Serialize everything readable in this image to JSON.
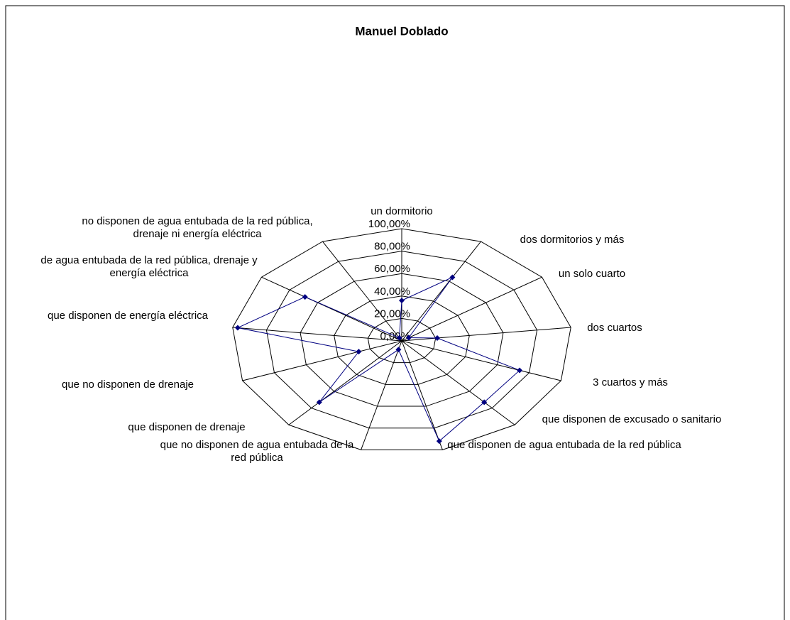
{
  "chart_data": {
    "type": "radar",
    "title": "Manuel Doblado",
    "categories": [
      "un dormitorio",
      "dos dormitorios y más",
      "un solo cuarto",
      "dos cuartos",
      "3 cuartos y más",
      "que disponen de excusado o sanitario",
      "que disponen de agua entubada de la red pública",
      "que no disponen de agua entubada de la red pública",
      "que disponen de drenaje",
      "que no disponen de drenaje",
      "que disponen de energía eléctrica",
      "de agua entubada de la red pública, drenaje y energía eléctrica",
      "no disponen de agua entubada de la red pública, drenaje ni energía eléctrica"
    ],
    "series": [
      {
        "color": "#000080",
        "values": [
          36,
          64,
          5,
          21,
          74,
          73,
          92,
          8,
          73,
          27,
          97,
          69,
          3
        ]
      }
    ],
    "ylim": [
      0,
      100
    ],
    "yticks": [
      {
        "value": 0,
        "label": "0,00%"
      },
      {
        "value": 20,
        "label": "20,00%"
      },
      {
        "value": 40,
        "label": "40,00%"
      },
      {
        "value": 60,
        "label": "60,00%"
      },
      {
        "value": 80,
        "label": "80,00%"
      },
      {
        "value": 100,
        "label": "100,00%"
      }
    ],
    "grid": true
  }
}
